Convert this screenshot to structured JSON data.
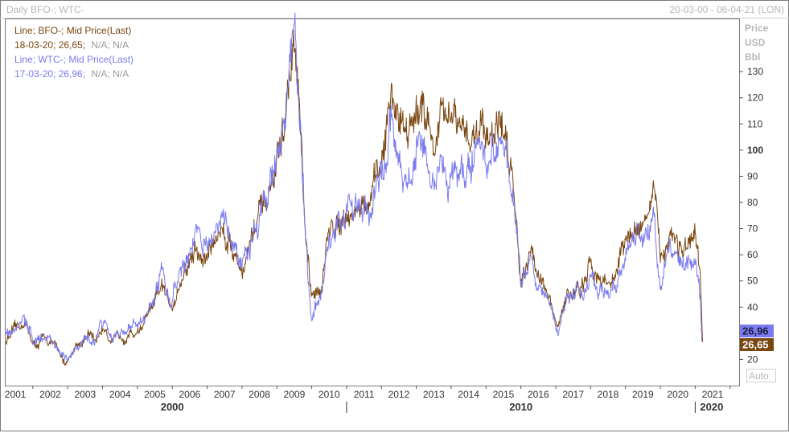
{
  "header": {
    "title": "Daily BFO-; WTC-",
    "date_range": "20-03-00 - 06-04-21 (LON)"
  },
  "legend": {
    "series1_name": "Line; BFO-; Mid Price(Last)",
    "series1_last_date_value": "18-03-20; 26,65;",
    "series1_na": "N/A; N/A",
    "series2_name": "Line; WTC-; Mid Price(Last)",
    "series2_last_date_value": "17-03-20; 26,96;",
    "series2_na": "N/A; N/A"
  },
  "axis": {
    "unit_line1": "Price",
    "unit_line2": "USD",
    "unit_line3": "Bbl",
    "auto_label": "Auto"
  },
  "colors": {
    "bfo": "#7a4610",
    "wtc": "#7b7bf0",
    "frame": "#7a7a7a",
    "muted_text": "#b7b7b7"
  },
  "chart_data": {
    "type": "line",
    "title": "Daily BFO-; WTC-",
    "ylabel": "Price USD Bbl",
    "ylim": [
      10,
      150
    ],
    "xlim": [
      2000.22,
      2021.26
    ],
    "y_ticks": [
      20,
      30,
      40,
      50,
      60,
      70,
      80,
      90,
      100,
      110,
      120,
      130
    ],
    "y_tick_labels": [
      "20",
      "30",
      "40",
      "50",
      "60",
      "70",
      "80",
      "90",
      "100",
      "110",
      "120",
      "130"
    ],
    "x_ticks": [
      2001,
      2002,
      2003,
      2004,
      2005,
      2006,
      2007,
      2008,
      2009,
      2010,
      2011,
      2012,
      2013,
      2014,
      2015,
      2016,
      2017,
      2018,
      2019,
      2020,
      2021
    ],
    "x_tick_labels": [
      "2001",
      "2002",
      "2003",
      "2004",
      "2005",
      "2006",
      "2007",
      "2008",
      "2009",
      "2010",
      "2011",
      "2012",
      "2013",
      "2014",
      "2015",
      "2016",
      "2017",
      "2018",
      "2019",
      "2020",
      "2021"
    ],
    "x_major_labels": [
      "2000",
      "2010",
      "2020"
    ],
    "grid": false,
    "legend_position": "top-left",
    "last_value_labels": [
      "26,96",
      "26,65"
    ],
    "series": [
      {
        "name": "BFO-",
        "x": [
          2000.22,
          2000.4,
          2000.6,
          2000.75,
          2000.9,
          2001.05,
          2001.25,
          2001.4,
          2001.6,
          2001.75,
          2001.85,
          2001.95,
          2002.05,
          2002.2,
          2002.4,
          2002.6,
          2002.8,
          2002.95,
          2003.1,
          2003.2,
          2003.3,
          2003.5,
          2003.7,
          2003.9,
          2004.1,
          2004.3,
          2004.5,
          2004.7,
          2004.82,
          2004.95,
          2005.1,
          2005.3,
          2005.5,
          2005.68,
          2005.85,
          2006.0,
          2006.2,
          2006.35,
          2006.6,
          2006.8,
          2007.0,
          2007.1,
          2007.3,
          2007.5,
          2007.7,
          2007.85,
          2008.0,
          2008.2,
          2008.35,
          2008.45,
          2008.52,
          2008.6,
          2008.7,
          2008.8,
          2008.9,
          2009.0,
          2009.1,
          2009.3,
          2009.45,
          2009.6,
          2009.8,
          2010.0,
          2010.2,
          2010.35,
          2010.5,
          2010.7,
          2010.85,
          2011.0,
          2011.15,
          2011.3,
          2011.45,
          2011.6,
          2011.8,
          2012.0,
          2012.2,
          2012.35,
          2012.5,
          2012.7,
          2012.9,
          2013.1,
          2013.3,
          2013.5,
          2013.7,
          2013.9,
          2014.1,
          2014.3,
          2014.5,
          2014.65,
          2014.8,
          2014.9,
          2015.0,
          2015.1,
          2015.3,
          2015.5,
          2015.7,
          2015.9,
          2016.05,
          2016.2,
          2016.4,
          2016.6,
          2016.8,
          2017.0,
          2017.2,
          2017.45,
          2017.7,
          2017.9,
          2018.1,
          2018.3,
          2018.5,
          2018.7,
          2018.8,
          2018.9,
          2019.0,
          2019.1,
          2019.3,
          2019.5,
          2019.7,
          2019.9,
          2020.0,
          2020.08,
          2020.15,
          2020.21
        ],
        "values": [
          27,
          30,
          32,
          35,
          30,
          25,
          27,
          28,
          26,
          22,
          20,
          19,
          21,
          25,
          27,
          29,
          27,
          31,
          33,
          28,
          26,
          29,
          30,
          30,
          32,
          37,
          40,
          48,
          43,
          41,
          45,
          52,
          57,
          62,
          57,
          60,
          65,
          70,
          67,
          60,
          55,
          58,
          68,
          75,
          78,
          85,
          95,
          107,
          125,
          140,
          136,
          125,
          100,
          70,
          55,
          42,
          45,
          50,
          65,
          70,
          75,
          77,
          75,
          80,
          76,
          80,
          88,
          95,
          110,
          120,
          115,
          112,
          110,
          108,
          123,
          110,
          100,
          112,
          110,
          112,
          103,
          106,
          108,
          110,
          107,
          110,
          108,
          100,
          85,
          70,
          50,
          56,
          62,
          54,
          47,
          38,
          31,
          40,
          45,
          47,
          47,
          55,
          53,
          49,
          52,
          62,
          66,
          70,
          74,
          77,
          84,
          72,
          58,
          62,
          70,
          65,
          61,
          63,
          64,
          58,
          50,
          26.65
        ]
      },
      {
        "name": "WTC-",
        "x": [
          2000.22,
          2000.4,
          2000.6,
          2000.75,
          2000.9,
          2001.05,
          2001.25,
          2001.4,
          2001.6,
          2001.75,
          2001.85,
          2001.95,
          2002.05,
          2002.2,
          2002.4,
          2002.6,
          2002.8,
          2002.95,
          2003.1,
          2003.2,
          2003.3,
          2003.5,
          2003.7,
          2003.9,
          2004.1,
          2004.3,
          2004.5,
          2004.7,
          2004.82,
          2004.95,
          2005.1,
          2005.3,
          2005.5,
          2005.68,
          2005.85,
          2006.0,
          2006.2,
          2006.35,
          2006.6,
          2006.8,
          2007.0,
          2007.1,
          2007.3,
          2007.5,
          2007.7,
          2007.85,
          2008.0,
          2008.2,
          2008.35,
          2008.45,
          2008.52,
          2008.6,
          2008.7,
          2008.8,
          2008.9,
          2009.0,
          2009.1,
          2009.3,
          2009.45,
          2009.6,
          2009.8,
          2010.0,
          2010.2,
          2010.35,
          2010.5,
          2010.7,
          2010.85,
          2011.0,
          2011.15,
          2011.3,
          2011.45,
          2011.6,
          2011.8,
          2012.0,
          2012.2,
          2012.35,
          2012.5,
          2012.7,
          2012.9,
          2013.1,
          2013.3,
          2013.5,
          2013.7,
          2013.9,
          2014.1,
          2014.3,
          2014.5,
          2014.65,
          2014.8,
          2014.9,
          2015.0,
          2015.1,
          2015.3,
          2015.5,
          2015.7,
          2015.9,
          2016.05,
          2016.2,
          2016.4,
          2016.6,
          2016.8,
          2017.0,
          2017.2,
          2017.45,
          2017.7,
          2017.9,
          2018.1,
          2018.3,
          2018.5,
          2018.7,
          2018.8,
          2018.9,
          2019.0,
          2019.1,
          2019.3,
          2019.5,
          2019.7,
          2019.9,
          2020.0,
          2020.08,
          2020.15,
          2020.19
        ],
        "values": [
          30,
          32,
          34,
          36,
          33,
          28,
          28,
          29,
          27,
          23,
          21,
          20,
          21,
          26,
          28,
          29,
          28,
          33,
          35,
          30,
          28,
          30,
          31,
          33,
          34,
          38,
          43,
          52,
          47,
          43,
          50,
          55,
          62,
          68,
          60,
          62,
          68,
          73,
          70,
          62,
          58,
          60,
          66,
          75,
          80,
          90,
          93,
          110,
          128,
          145,
          138,
          122,
          100,
          72,
          50,
          36,
          40,
          48,
          60,
          68,
          72,
          80,
          78,
          82,
          76,
          79,
          85,
          90,
          100,
          110,
          98,
          90,
          86,
          98,
          105,
          90,
          85,
          92,
          88,
          95,
          92,
          95,
          98,
          100,
          97,
          104,
          100,
          95,
          82,
          68,
          47,
          50,
          58,
          48,
          45,
          40,
          30,
          38,
          45,
          46,
          45,
          53,
          48,
          47,
          50,
          58,
          63,
          67,
          70,
          72,
          75,
          60,
          46,
          55,
          62,
          58,
          55,
          57,
          58,
          53,
          45,
          26.96
        ]
      }
    ]
  }
}
